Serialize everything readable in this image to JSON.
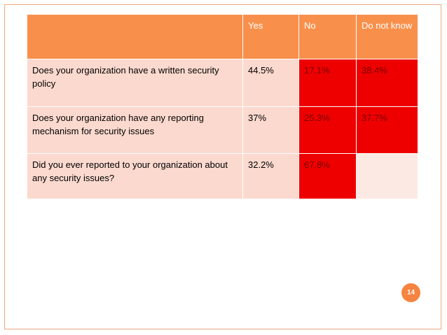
{
  "table": {
    "headers": [
      "",
      "Yes",
      "No",
      "Do not know"
    ],
    "rows": [
      {
        "question": "Does your organization have a written security policy",
        "yes": "44.5%",
        "no": "17.1%",
        "dont_know": "38.4%"
      },
      {
        "question": "Does your organization have any reporting mechanism for security issues",
        "yes": "37%",
        "no": "25.3%",
        "dont_know": "37.7%"
      },
      {
        "question": "Did you ever reported to your organization about any security issues?",
        "yes": "32.2%",
        "no": "67.8%",
        "dont_know": ""
      }
    ]
  },
  "slide": {
    "page_number": "14"
  },
  "colors": {
    "header": "#f8904c",
    "question_cell": "#fcd9ce",
    "highlight": "#ee0000",
    "accent": "#f6833f"
  }
}
